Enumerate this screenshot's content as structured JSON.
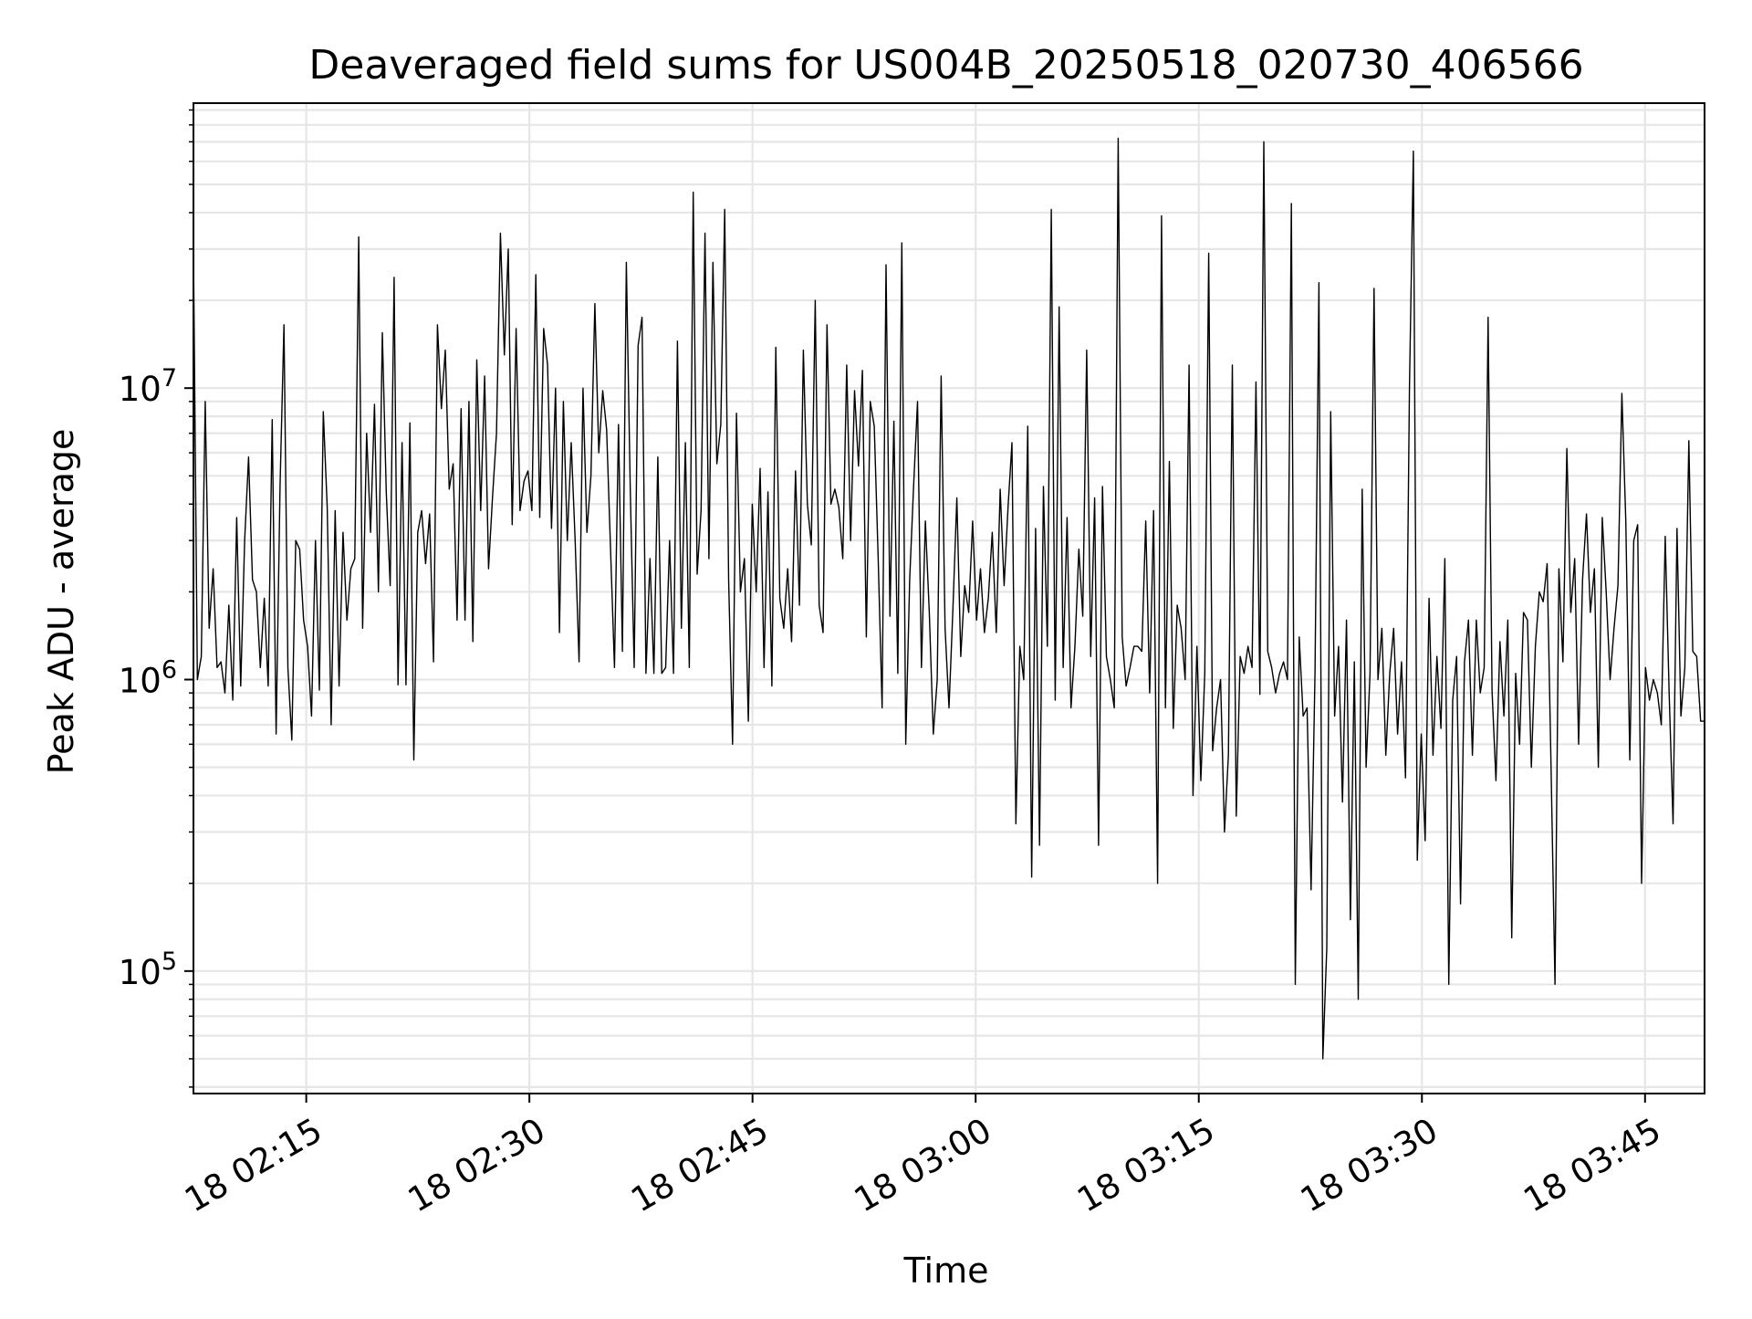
{
  "chart_data": {
    "type": "line",
    "title": "Deaveraged field sums for US004B_20250518_020730_406566",
    "xlabel": "Time",
    "ylabel": "Peak ADU - average",
    "y_scale": "log",
    "ylim": [
      38000,
      95000000
    ],
    "xlim": [
      "2025-05-18 02:07:25",
      "2025-05-18 03:49:00"
    ],
    "x_ticks": [
      "18 02:15",
      "18 02:30",
      "18 02:45",
      "18 03:00",
      "18 03:15",
      "18 03:30",
      "18 03:45"
    ],
    "y_ticks": [
      {
        "base": "10",
        "exp": "5"
      },
      {
        "base": "10",
        "exp": "6"
      },
      {
        "base": "10",
        "exp": "7"
      }
    ],
    "grid": true,
    "line_color": "#000000",
    "series": [
      {
        "x_start": "2025-05-18 02:07:25",
        "x_end": "2025-05-18 03:49:00",
        "values": [
          30000000,
          1000000,
          1200000,
          9000000,
          1500000,
          2400000,
          1100000,
          1150000,
          900000,
          1800000,
          850000,
          3600000,
          950000,
          3000000,
          5800000,
          2200000,
          2000000,
          1100000,
          1900000,
          950000,
          7800000,
          650000,
          4600000,
          16500000,
          1100000,
          620000,
          3000000,
          2800000,
          1600000,
          1300000,
          750000,
          3000000,
          920000,
          8300000,
          3900000,
          700000,
          3800000,
          950000,
          3200000,
          1600000,
          2400000,
          2600000,
          33000000,
          1500000,
          7000000,
          3200000,
          8800000,
          2000000,
          15500000,
          4400000,
          2100000,
          24000000,
          960000,
          6500000,
          960000,
          7600000,
          530000,
          3200000,
          3800000,
          2500000,
          3700000,
          1150000,
          16500000,
          8500000,
          13500000,
          4500000,
          5500000,
          1600000,
          8500000,
          1600000,
          9000000,
          1350000,
          12500000,
          3800000,
          11000000,
          2400000,
          4200000,
          7000000,
          34000000,
          13000000,
          30000000,
          3400000,
          16000000,
          3800000,
          4800000,
          5200000,
          3800000,
          24500000,
          3600000,
          16000000,
          12000000,
          3300000,
          10000000,
          1450000,
          9000000,
          3000000,
          6500000,
          3000000,
          1150000,
          10000000,
          3200000,
          5000000,
          19500000,
          6000000,
          9800000,
          7200000,
          2800000,
          1100000,
          7500000,
          1250000,
          27000000,
          4500000,
          1100000,
          14000000,
          17500000,
          1050000,
          2600000,
          1050000,
          5800000,
          1050000,
          1100000,
          3000000,
          1050000,
          14500000,
          1500000,
          6500000,
          1100000,
          47000000,
          2300000,
          3800000,
          34000000,
          2600000,
          27000000,
          5500000,
          7500000,
          41000000,
          2200000,
          600000,
          8200000,
          2000000,
          2600000,
          720000,
          4000000,
          2000000,
          5300000,
          1100000,
          4400000,
          950000,
          13800000,
          1900000,
          1500000,
          2400000,
          1350000,
          5200000,
          1800000,
          13500000,
          4000000,
          2900000,
          20000000,
          1800000,
          1450000,
          16500000,
          4000000,
          4500000,
          3900000,
          2600000,
          12000000,
          3000000,
          9800000,
          5400000,
          11500000,
          1400000,
          9000000,
          7400000,
          2600000,
          800000,
          26500000,
          1650000,
          7700000,
          1050000,
          31500000,
          600000,
          2200000,
          4600000,
          9000000,
          1100000,
          3500000,
          1700000,
          650000,
          1000000,
          11000000,
          1500000,
          800000,
          1750000,
          4200000,
          1200000,
          2100000,
          1700000,
          3500000,
          1600000,
          2400000,
          1450000,
          1900000,
          3200000,
          1450000,
          4500000,
          2100000,
          3900000,
          6500000,
          320000,
          1300000,
          1000000,
          7400000,
          210000,
          3300000,
          270000,
          4600000,
          1300000,
          41000000,
          850000,
          19000000,
          1100000,
          3600000,
          800000,
          1300000,
          2800000,
          1650000,
          13500000,
          1200000,
          4200000,
          270000,
          4600000,
          1200000,
          1000000,
          800000,
          72000000,
          1400000,
          950000,
          1100000,
          1300000,
          1300000,
          1250000,
          3500000,
          900000,
          3800000,
          200000,
          39000000,
          800000,
          5600000,
          680000,
          1800000,
          1500000,
          1000000,
          12000000,
          400000,
          1300000,
          450000,
          1050000,
          29000000,
          570000,
          800000,
          1000000,
          300000,
          550000,
          12000000,
          340000,
          1200000,
          1050000,
          1300000,
          1100000,
          10500000,
          890000,
          70000000,
          1250000,
          1100000,
          900000,
          1050000,
          1150000,
          1000000,
          43000000,
          90000,
          1400000,
          750000,
          800000,
          190000,
          1050000,
          23000000,
          50000,
          120000,
          8300000,
          750000,
          1300000,
          380000,
          1600000,
          150000,
          1150000,
          80000,
          4500000,
          500000,
          1050000,
          22000000,
          1000000,
          1500000,
          550000,
          1050000,
          1500000,
          650000,
          1150000,
          460000,
          10000000,
          65000000,
          240000,
          650000,
          280000,
          1900000,
          550000,
          1200000,
          680000,
          2600000,
          90000,
          850000,
          1200000,
          170000,
          1150000,
          1600000,
          550000,
          1600000,
          900000,
          1100000,
          17500000,
          920000,
          450000,
          1350000,
          750000,
          1600000,
          130000,
          1050000,
          600000,
          1700000,
          1600000,
          500000,
          1300000,
          2000000,
          1850000,
          2500000,
          500000,
          90000,
          2400000,
          1150000,
          6200000,
          1700000,
          2600000,
          600000,
          2200000,
          3700000,
          1700000,
          2400000,
          500000,
          3600000,
          2000000,
          1000000,
          1500000,
          2100000,
          9600000,
          3500000,
          530000,
          3000000,
          3400000,
          200000,
          1100000,
          850000,
          1000000,
          900000,
          700000,
          3100000,
          900000,
          320000,
          3300000,
          750000,
          1100000,
          6600000,
          1250000,
          1200000,
          720000,
          720000
        ]
      }
    ]
  }
}
